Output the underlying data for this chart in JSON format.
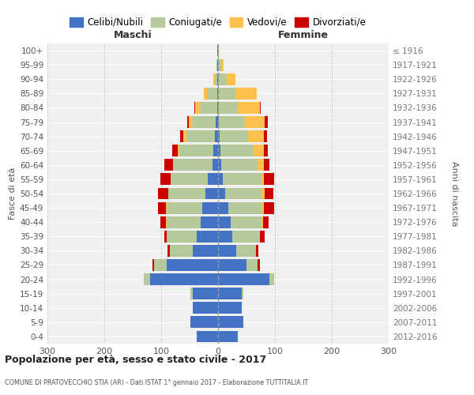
{
  "age_groups": [
    "0-4",
    "5-9",
    "10-14",
    "15-19",
    "20-24",
    "25-29",
    "30-34",
    "35-39",
    "40-44",
    "45-49",
    "50-54",
    "55-59",
    "60-64",
    "65-69",
    "70-74",
    "75-79",
    "80-84",
    "85-89",
    "90-94",
    "95-99",
    "100+"
  ],
  "birth_years": [
    "2012-2016",
    "2007-2011",
    "2002-2006",
    "1997-2001",
    "1992-1996",
    "1987-1991",
    "1982-1986",
    "1977-1981",
    "1972-1976",
    "1967-1971",
    "1962-1966",
    "1957-1961",
    "1952-1956",
    "1947-1951",
    "1942-1946",
    "1937-1941",
    "1932-1936",
    "1927-1931",
    "1922-1926",
    "1917-1921",
    "≤ 1916"
  ],
  "male": {
    "celibi": [
      38,
      48,
      45,
      45,
      120,
      90,
      45,
      38,
      30,
      28,
      22,
      18,
      10,
      8,
      5,
      4,
      2,
      2,
      1,
      1,
      1
    ],
    "coniugati": [
      0,
      0,
      0,
      3,
      10,
      22,
      40,
      52,
      60,
      62,
      65,
      65,
      68,
      60,
      50,
      42,
      30,
      18,
      5,
      2,
      1
    ],
    "vedovi": [
      0,
      0,
      0,
      0,
      0,
      0,
      0,
      0,
      1,
      1,
      1,
      1,
      1,
      3,
      6,
      6,
      8,
      5,
      2,
      0,
      0
    ],
    "divorziati": [
      0,
      0,
      0,
      0,
      0,
      3,
      4,
      5,
      10,
      15,
      18,
      18,
      15,
      10,
      5,
      2,
      2,
      0,
      0,
      0,
      0
    ]
  },
  "female": {
    "nubili": [
      35,
      44,
      42,
      42,
      90,
      50,
      32,
      25,
      22,
      18,
      12,
      8,
      5,
      4,
      3,
      2,
      0,
      0,
      0,
      0,
      0
    ],
    "coniugate": [
      0,
      0,
      0,
      2,
      8,
      20,
      35,
      48,
      55,
      60,
      65,
      68,
      65,
      58,
      50,
      45,
      35,
      30,
      15,
      5,
      1
    ],
    "vedove": [
      0,
      0,
      0,
      0,
      0,
      0,
      0,
      1,
      2,
      3,
      5,
      5,
      10,
      18,
      28,
      35,
      38,
      38,
      15,
      5,
      1
    ],
    "divorziate": [
      0,
      0,
      0,
      0,
      0,
      3,
      4,
      8,
      10,
      18,
      15,
      18,
      10,
      8,
      5,
      5,
      2,
      0,
      0,
      0,
      0
    ]
  },
  "colors": {
    "celibi": "#4472c4",
    "coniugati": "#b5c99a",
    "vedovi": "#ffc04c",
    "divorziati": "#cc0000"
  },
  "title": "Popolazione per età, sesso e stato civile - 2017",
  "subtitle": "COMUNE DI PRATOVECCHIO STIA (AR) - Dati ISTAT 1° gennaio 2017 - Elaborazione TUTTITALIA.IT",
  "xlabel_left": "Maschi",
  "xlabel_right": "Femmine",
  "ylabel_left": "Fasce di età",
  "ylabel_right": "Anni di nascita",
  "xlim": 300,
  "legend_labels": [
    "Celibi/Nubili",
    "Coniugati/e",
    "Vedovi/e",
    "Divorziati/e"
  ],
  "background_color": "#f0f0f0"
}
